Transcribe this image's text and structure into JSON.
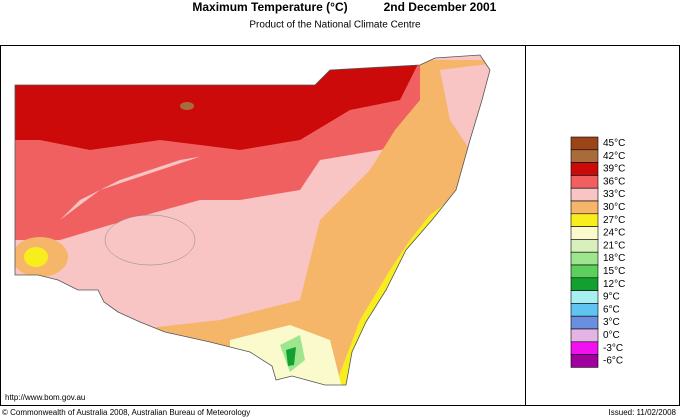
{
  "header": {
    "title": "Maximum Temperature (°C)",
    "date": "2nd December 2001",
    "subtitle": "Product of the National Climate Centre"
  },
  "legend": [
    {
      "label": "45°C",
      "color": "#9c4418"
    },
    {
      "label": "42°C",
      "color": "#a86c3c"
    },
    {
      "label": "39°C",
      "color": "#cc0a0a"
    },
    {
      "label": "36°C",
      "color": "#f06060"
    },
    {
      "label": "33°C",
      "color": "#f8c4c4"
    },
    {
      "label": "30°C",
      "color": "#f6b66a"
    },
    {
      "label": "27°C",
      "color": "#f8ee1e"
    },
    {
      "label": "24°C",
      "color": "#fafacc"
    },
    {
      "label": "21°C",
      "color": "#d8f0bc"
    },
    {
      "label": "18°C",
      "color": "#9ee68e"
    },
    {
      "label": "15°C",
      "color": "#5cd05c"
    },
    {
      "label": "12°C",
      "color": "#12a030"
    },
    {
      "label": "9°C",
      "color": "#a8f0f0"
    },
    {
      "label": "6°C",
      "color": "#60c4f0"
    },
    {
      "label": "3°C",
      "color": "#6a8ee0"
    },
    {
      "label": "0°C",
      "color": "#e4b4e4"
    },
    {
      "label": "-3°C",
      "color": "#f010f0"
    },
    {
      "label": "-6°C",
      "color": "#a000a0"
    }
  ],
  "footer": {
    "url": "http://www.bom.gov.au",
    "copyright": "© Commonwealth of Australia 2008, Australian Bureau of Meteorology",
    "issued": "Issued: 11/02/2008"
  }
}
